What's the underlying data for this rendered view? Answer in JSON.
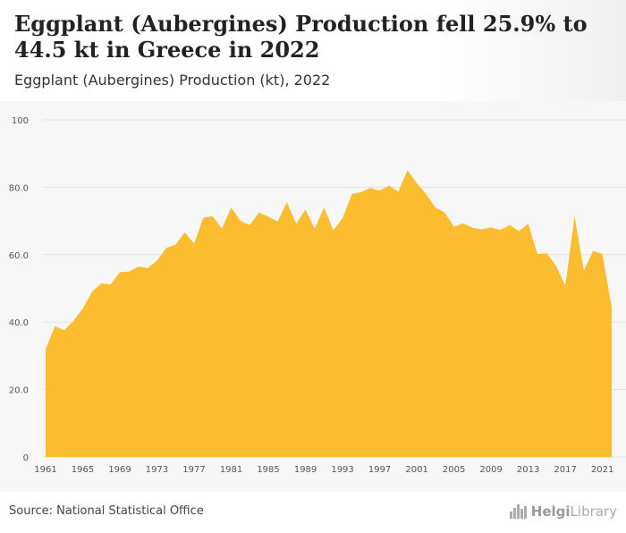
{
  "header": {
    "title": "Eggplant (Aubergines) Production fell 25.9% to 44.5 kt in Greece in 2022",
    "subtitle": "Eggplant (Aubergines) Production (kt), 2022"
  },
  "footer": {
    "source": "Source: National Statistical Office",
    "brand_part1": "Helgi",
    "brand_part2": "Library"
  },
  "colors": {
    "area": "#fbbc2f",
    "grid": "#e2e2e2",
    "axis_text": "#555555"
  },
  "chart_data": {
    "type": "area",
    "title": "Eggplant (Aubergines) Production (kt), 2022",
    "xlabel": "",
    "ylabel": "",
    "ylim": [
      0,
      100
    ],
    "xlim": [
      1961,
      2022
    ],
    "grid": true,
    "yticks": [
      0,
      20.0,
      40.0,
      60.0,
      80.0,
      100
    ],
    "ytick_labels": [
      "0",
      "20.0",
      "40.0",
      "60.0",
      "80.0",
      "100"
    ],
    "xticks": [
      1961,
      1965,
      1969,
      1973,
      1977,
      1981,
      1985,
      1989,
      1993,
      1997,
      2001,
      2005,
      2009,
      2013,
      2017,
      2021
    ],
    "x": [
      1961,
      1962,
      1963,
      1964,
      1965,
      1966,
      1967,
      1968,
      1969,
      1970,
      1971,
      1972,
      1973,
      1974,
      1975,
      1976,
      1977,
      1978,
      1979,
      1980,
      1981,
      1982,
      1983,
      1984,
      1985,
      1986,
      1987,
      1988,
      1989,
      1990,
      1991,
      1992,
      1993,
      1994,
      1995,
      1996,
      1997,
      1998,
      1999,
      2000,
      2001,
      2002,
      2003,
      2004,
      2005,
      2006,
      2007,
      2008,
      2009,
      2010,
      2011,
      2012,
      2013,
      2014,
      2015,
      2016,
      2017,
      2018,
      2019,
      2020,
      2021,
      2022
    ],
    "series": [
      {
        "values": [
          32.0,
          38.8,
          37.6,
          40.4,
          44.0,
          49.0,
          51.5,
          51.2,
          54.8,
          55.0,
          56.5,
          56.0,
          58.3,
          62.0,
          63.0,
          66.6,
          63.3,
          71.0,
          71.4,
          67.8,
          74.0,
          70.0,
          68.8,
          72.5,
          71.3,
          69.8,
          75.6,
          69.2,
          73.4,
          67.7,
          74.0,
          67.3,
          70.8,
          78.0,
          78.6,
          79.8,
          79.0,
          80.5,
          78.7,
          85.0,
          81.2,
          78.0,
          74.0,
          72.5,
          68.3,
          69.3,
          68.0,
          67.5,
          68.1,
          67.3,
          68.8,
          67.0,
          69.2,
          60.2,
          60.4,
          56.8,
          50.8,
          71.4,
          55.3,
          61.1,
          60.2,
          44.5
        ]
      }
    ]
  }
}
